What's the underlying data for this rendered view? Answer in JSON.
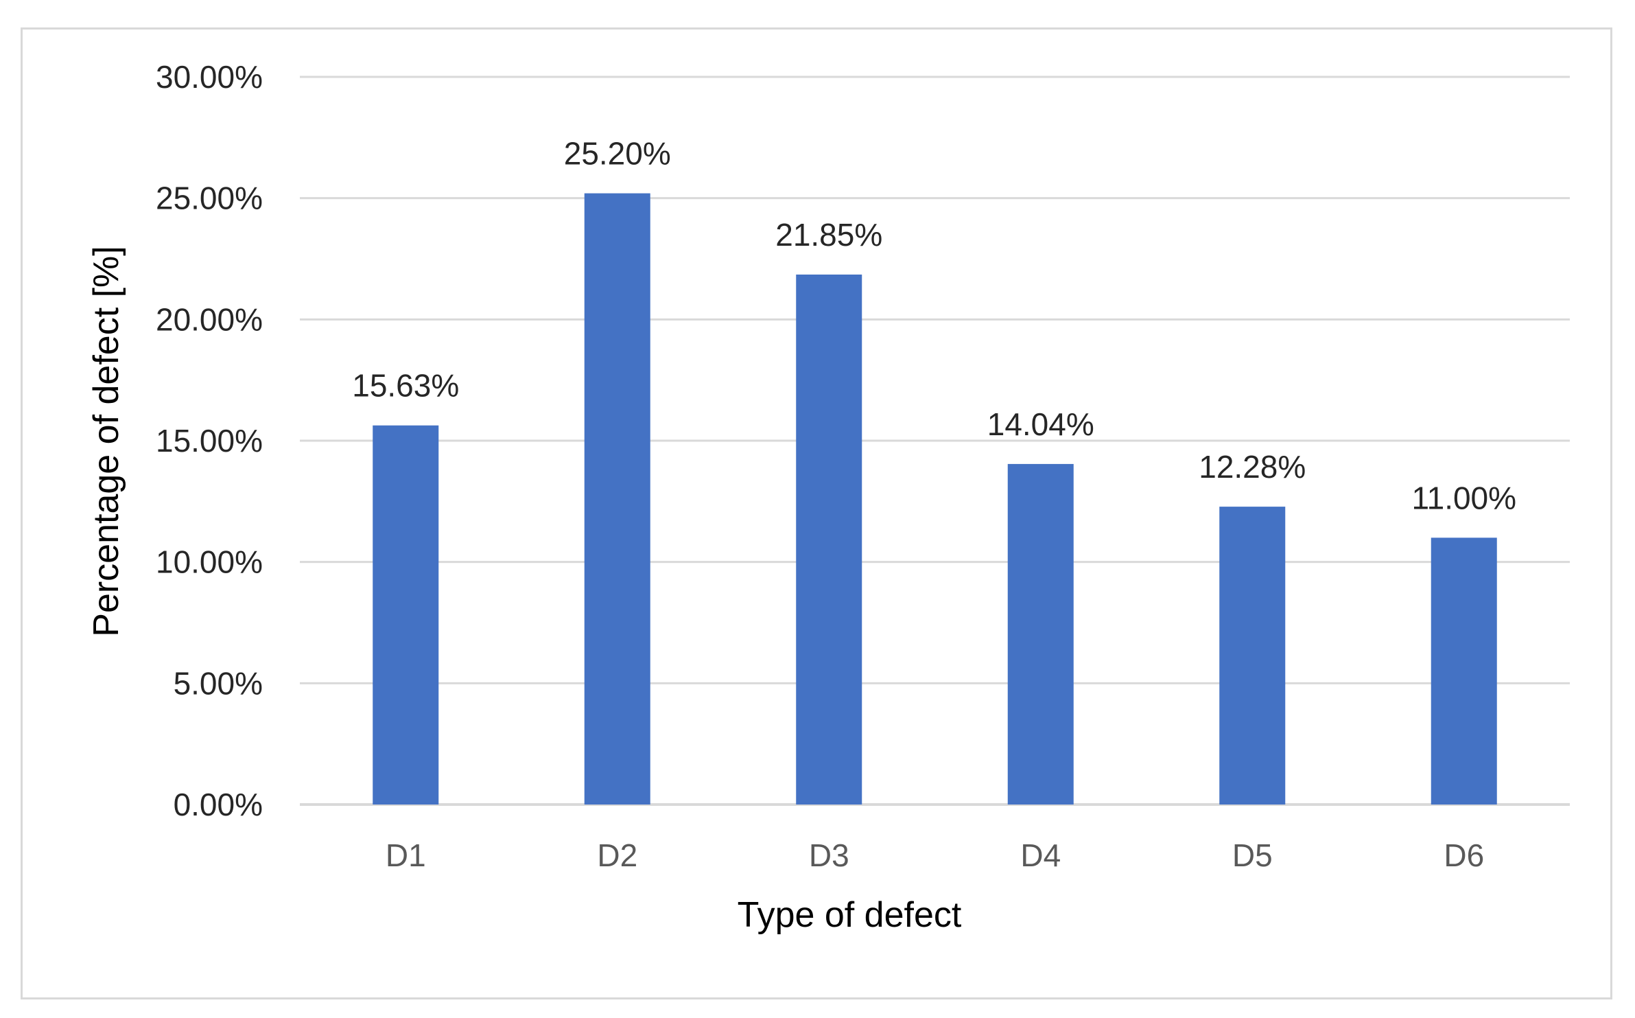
{
  "chart_data": {
    "type": "bar",
    "title": "",
    "categories": [
      "D1",
      "D2",
      "D3",
      "D4",
      "D5",
      "D6"
    ],
    "values": [
      15.63,
      25.2,
      21.85,
      14.04,
      12.28,
      11.0
    ],
    "data_labels": [
      "15.63%",
      "25.20%",
      "21.85%",
      "14.04%",
      "12.28%",
      "11.00%"
    ],
    "xlabel": "Type of defect",
    "ylabel": "Percentage of defect  [%]",
    "ylim": [
      0,
      30
    ],
    "yticks": [
      0,
      5,
      10,
      15,
      20,
      25,
      30
    ],
    "ytick_labels": [
      "0.00%",
      "5.00%",
      "10.00%",
      "15.00%",
      "20.00%",
      "25.00%",
      "30.00%"
    ],
    "grid": true,
    "legend": "none",
    "colors": {
      "bar": "#4472c4",
      "grid": "#d9d9d9",
      "frame": "#d9d9d9"
    }
  }
}
